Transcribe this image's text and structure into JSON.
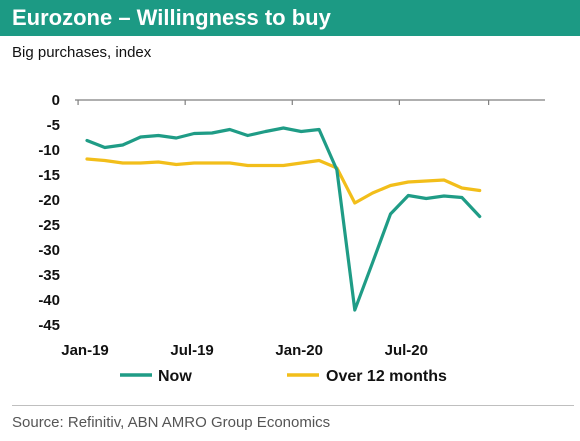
{
  "header": {
    "title": "Eurozone – Willingness to buy",
    "subtitle": "Big purchases, index"
  },
  "footer": {
    "source": "Source: Refinitiv, ABN AMRO Group Economics"
  },
  "colors": {
    "title_bar": "#1c9a84",
    "now": "#1f9c86",
    "over12": "#f2be1a",
    "axis": "#7f7f7f"
  },
  "chart_data": {
    "type": "line",
    "title": "Eurozone – Willingness to buy",
    "subtitle": "Big purchases, index",
    "ylim": [
      -45,
      0
    ],
    "yticks": [
      0,
      -5,
      -10,
      -15,
      -20,
      -25,
      -30,
      -35,
      -40,
      -45
    ],
    "ytick_labels": [
      "0",
      "-5",
      "-10",
      "-15",
      "-20",
      "-25",
      "-30",
      "-35",
      "-40",
      "-45"
    ],
    "x": [
      "Jan-19",
      "Feb-19",
      "Mar-19",
      "Apr-19",
      "May-19",
      "Jun-19",
      "Jul-19",
      "Aug-19",
      "Sep-19",
      "Oct-19",
      "Nov-19",
      "Dec-19",
      "Jan-20",
      "Feb-20",
      "Mar-20",
      "Apr-20",
      "May-20",
      "Jun-20",
      "Jul-20",
      "Aug-20",
      "Sep-20",
      "Oct-20",
      "Nov-20"
    ],
    "xtick_labels": [
      "Jan-19",
      "Jul-19",
      "Jan-20",
      "Jul-20"
    ],
    "xtick_index": [
      0,
      6,
      12,
      18
    ],
    "series": [
      {
        "name": "Now",
        "color": "#1f9c86",
        "values": [
          -8.1,
          -9.5,
          -9.0,
          -7.4,
          -7.1,
          -7.6,
          -6.7,
          -6.6,
          -5.9,
          -7.1,
          -6.3,
          -5.6,
          -6.3,
          -5.9,
          -14.0,
          -42.0,
          -32.5,
          -22.8,
          -19.1,
          -19.7,
          -19.2,
          -19.5,
          -23.3
        ]
      },
      {
        "name": "Over 12 months",
        "color": "#f2be1a",
        "values": [
          -11.8,
          -12.1,
          -12.6,
          -12.6,
          -12.4,
          -12.9,
          -12.6,
          -12.6,
          -12.6,
          -13.1,
          -13.1,
          -13.1,
          -12.6,
          -12.1,
          -13.6,
          -20.6,
          -18.6,
          -17.1,
          -16.4,
          -16.2,
          -16.0,
          -17.6,
          -18.1
        ]
      }
    ],
    "legend_position": "bottom",
    "grid": false
  }
}
